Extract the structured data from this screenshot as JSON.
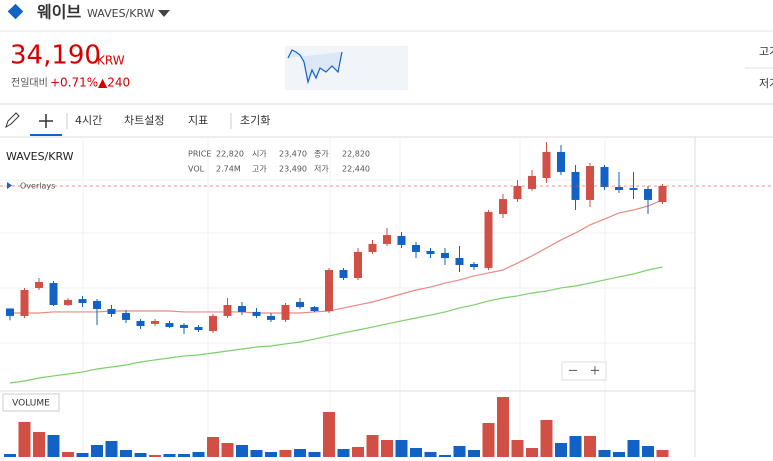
{
  "header": {
    "name": "웨이브",
    "symbol": "WAVES/KRW",
    "price": "34,190",
    "currency": "KRW",
    "change_label": "전일대비",
    "change_pct": "+0.71%",
    "change_abs": "▲240",
    "high_label": "고가",
    "low_label": "저가"
  },
  "toolbar": {
    "interval": "4시간",
    "settings": "차트설정",
    "indicators": "지표",
    "reset": "초기화"
  },
  "chart_data": {
    "type": "candlestick",
    "title": "WAVES/KRW",
    "info": {
      "price_label": "PRICE",
      "price": "22,820",
      "open_label": "시가",
      "open": "23,470",
      "close_label": "종가",
      "close": "22,820",
      "vol_label": "VOL",
      "vol": "2.74M",
      "high_label": "고가",
      "high": "23,490",
      "low_label": "저가",
      "low": "22,440"
    },
    "overlays_label": "Overlays",
    "volume_label": "VOLUME",
    "up_color": "#d24f45",
    "down_color": "#1261c4",
    "ylim": [
      16340,
      38390
    ],
    "open": [
      23470,
      22820,
      25270,
      25700,
      23780,
      24300,
      24130,
      23430,
      23080,
      22380,
      22120,
      22200,
      22030,
      21850,
      21500,
      22820,
      23690,
      23170,
      22820,
      22470,
      24040,
      23600,
      23250,
      26840,
      26140,
      28420,
      29120,
      29820,
      29030,
      28500,
      28330,
      27890,
      27370,
      27020,
      31740,
      33050,
      33930,
      34890,
      37170,
      35420,
      32970,
      35850,
      34100,
      34020,
      33930,
      32790
    ],
    "high": [
      23490,
      25270,
      26140,
      25880,
      24390,
      24570,
      24300,
      23780,
      23340,
      22550,
      22550,
      22380,
      22200,
      22030,
      22990,
      24390,
      24040,
      23520,
      23080,
      23950,
      24390,
      23690,
      27020,
      27020,
      28770,
      29470,
      30520,
      30170,
      29290,
      28770,
      28770,
      28940,
      27540,
      32090,
      33490,
      34720,
      35590,
      38040,
      37780,
      36030,
      36200,
      36030,
      35420,
      35420,
      34190,
      34370
    ],
    "low": [
      22440,
      22640,
      25090,
      23690,
      23690,
      23600,
      22030,
      22730,
      22200,
      21680,
      21940,
      21770,
      21240,
      21420,
      21330,
      22640,
      22900,
      22640,
      22290,
      22290,
      23430,
      23170,
      23080,
      25970,
      25970,
      28240,
      28940,
      28770,
      27890,
      27890,
      27280,
      26670,
      26840,
      26840,
      31390,
      32790,
      33750,
      34450,
      35150,
      32090,
      32350,
      33840,
      33580,
      33050,
      31740,
      32620
    ],
    "close": [
      22820,
      25090,
      25790,
      23780,
      24220,
      23950,
      23430,
      22990,
      22470,
      21940,
      22380,
      21850,
      21770,
      21590,
      22820,
      23780,
      23170,
      22820,
      22470,
      23780,
      23600,
      23250,
      26840,
      26140,
      28420,
      29120,
      29900,
      29030,
      28420,
      28240,
      27890,
      27280,
      27100,
      31920,
      33050,
      34190,
      35070,
      37170,
      35420,
      32970,
      35940,
      34100,
      33840,
      33840,
      32970,
      34190
    ],
    "series": [
      {
        "color": "#e88a84",
        "values": [
          23080,
          23080,
          23080,
          23170,
          23170,
          23170,
          23170,
          23250,
          23250,
          23250,
          23250,
          23250,
          23170,
          23170,
          23170,
          23170,
          23170,
          23080,
          23080,
          23080,
          23080,
          23170,
          23250,
          23520,
          23780,
          24040,
          24390,
          24740,
          25090,
          25350,
          25700,
          25970,
          26320,
          26580,
          26840,
          27450,
          28070,
          28770,
          29470,
          30080,
          30780,
          31300,
          31830,
          32090,
          32440,
          32970
        ]
      },
      {
        "color": "#7ccf6a",
        "values": [
          16950,
          17130,
          17390,
          17570,
          17740,
          17920,
          18180,
          18350,
          18530,
          18790,
          18970,
          19140,
          19320,
          19400,
          19580,
          19750,
          19930,
          20100,
          20190,
          20370,
          20540,
          20800,
          21070,
          21330,
          21590,
          21850,
          22120,
          22380,
          22640,
          22900,
          23170,
          23520,
          23780,
          24130,
          24390,
          24570,
          24830,
          25000,
          25270,
          25440,
          25700,
          25970,
          26230,
          26490,
          26840,
          27100
        ]
      }
    ],
    "volume": {
      "ylim": [
        0,
        64
      ],
      "values": [
        3,
        35,
        25,
        22,
        5,
        4,
        12,
        16,
        7,
        4,
        2,
        3,
        3,
        5,
        20,
        14,
        12,
        7,
        5,
        7,
        8,
        5,
        45,
        8,
        10,
        22,
        17,
        17,
        9,
        5,
        2,
        11,
        7,
        34,
        60,
        17,
        9,
        37,
        14,
        21,
        21,
        7,
        5,
        17,
        11,
        7
      ]
    }
  }
}
